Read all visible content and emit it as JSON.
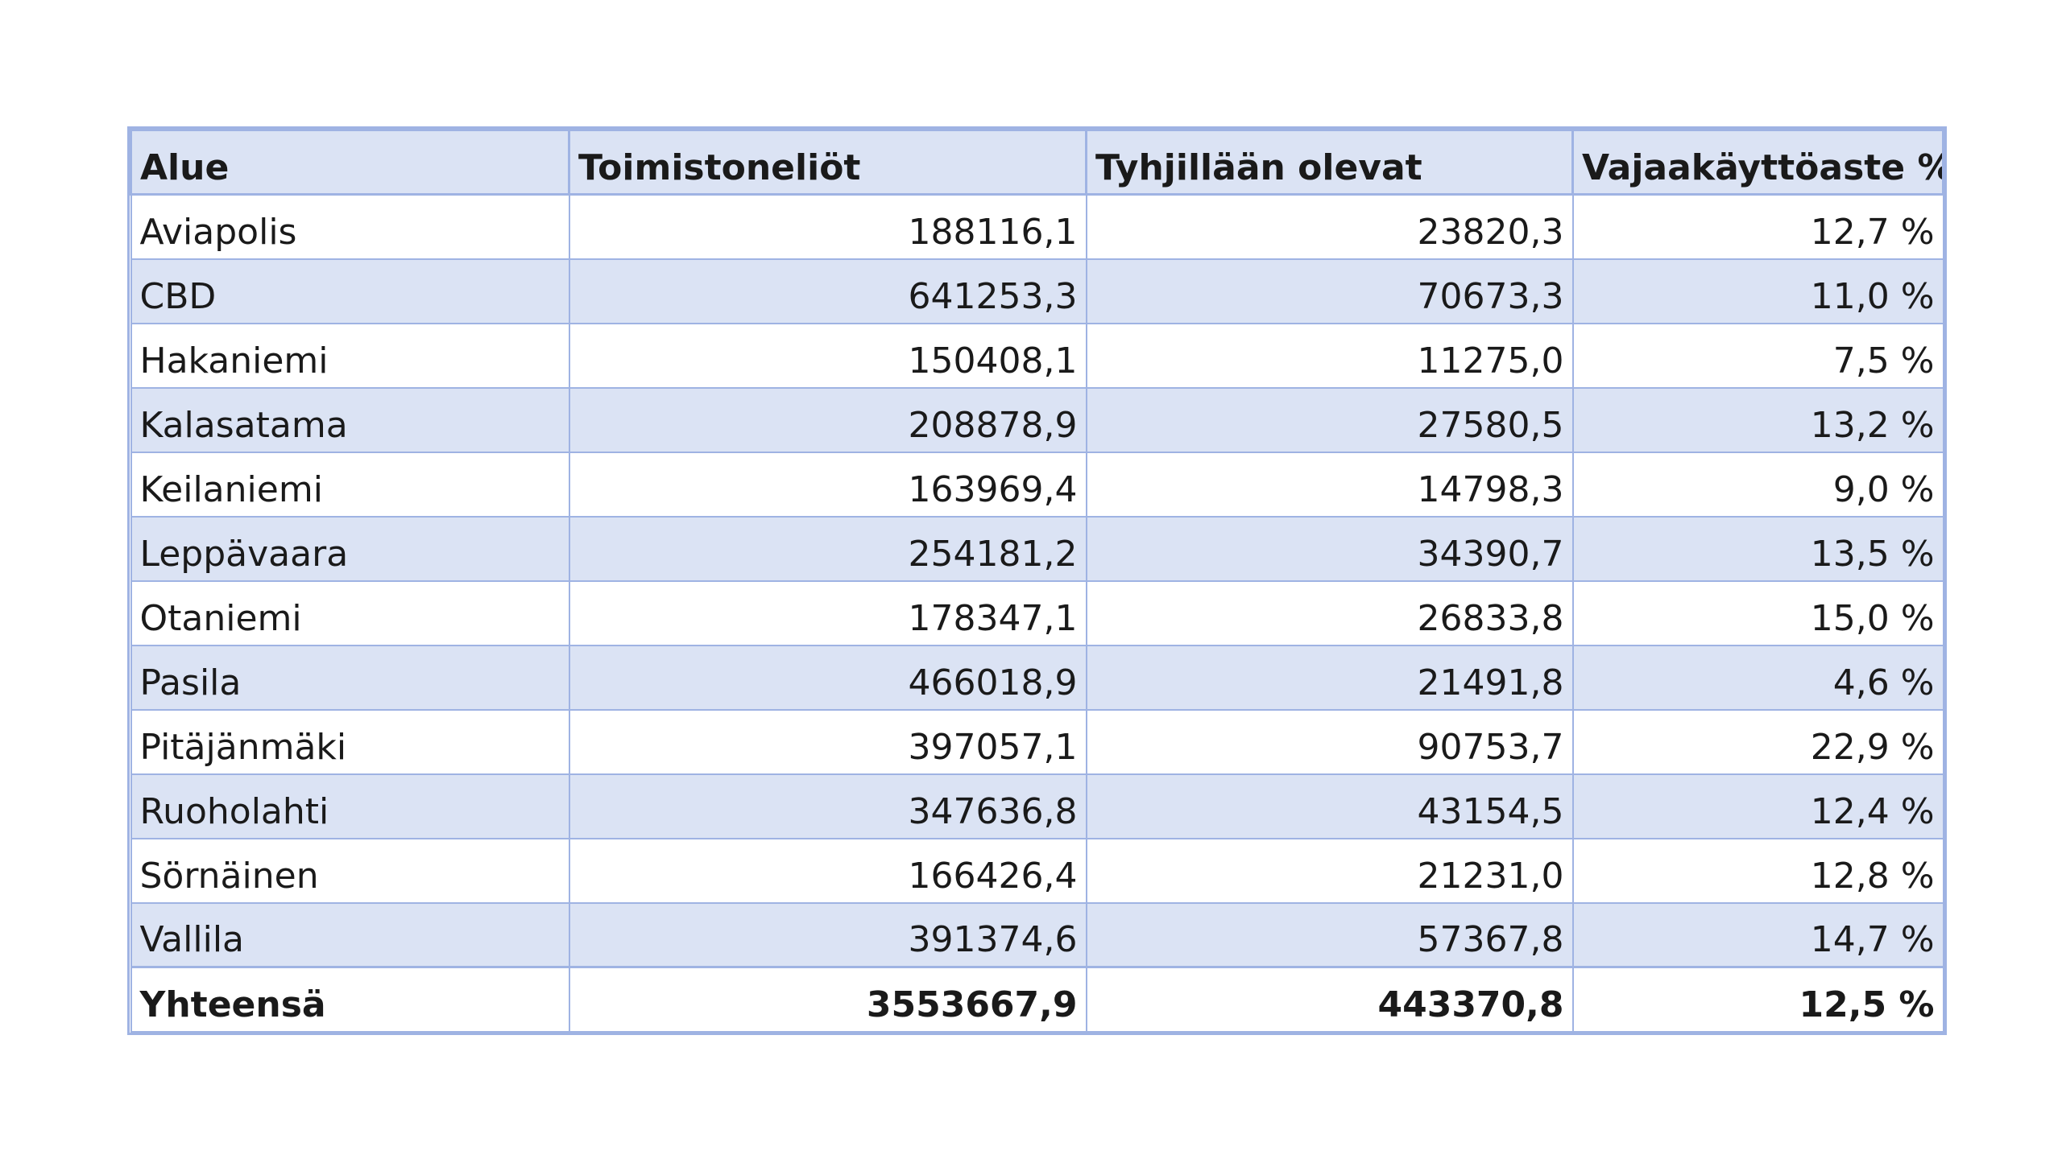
{
  "table": {
    "headers": [
      "Alue",
      "Toimistoneliöt",
      "Tyhjillään olevat",
      "Vajaakäyttöaste %"
    ],
    "rows": [
      [
        "Aviapolis",
        "188116,1",
        "23820,3",
        "12,7 %"
      ],
      [
        "CBD",
        "641253,3",
        "70673,3",
        "11,0 %"
      ],
      [
        "Hakaniemi",
        "150408,1",
        "11275,0",
        "7,5 %"
      ],
      [
        "Kalasatama",
        "208878,9",
        "27580,5",
        "13,2 %"
      ],
      [
        "Keilaniemi",
        "163969,4",
        "14798,3",
        "9,0 %"
      ],
      [
        "Leppävaara",
        "254181,2",
        "34390,7",
        "13,5 %"
      ],
      [
        "Otaniemi",
        "178347,1",
        "26833,8",
        "15,0 %"
      ],
      [
        "Pasila",
        "466018,9",
        "21491,8",
        "4,6 %"
      ],
      [
        "Pitäjänmäki",
        "397057,1",
        "90753,7",
        "22,9 %"
      ],
      [
        "Ruoholahti",
        "347636,8",
        "43154,5",
        "12,4 %"
      ],
      [
        "Sörnäinen",
        "166426,4",
        "21231,0",
        "12,8 %"
      ],
      [
        "Vallila",
        "391374,6",
        "57367,8",
        "14,7 %"
      ]
    ],
    "total": [
      "Yhteensä",
      "3553667,9",
      "443370,8",
      "12,5 %"
    ]
  },
  "colors": {
    "band": "#dbe3f4",
    "border": "#9fb3e3",
    "text": "#1a1a1a"
  }
}
